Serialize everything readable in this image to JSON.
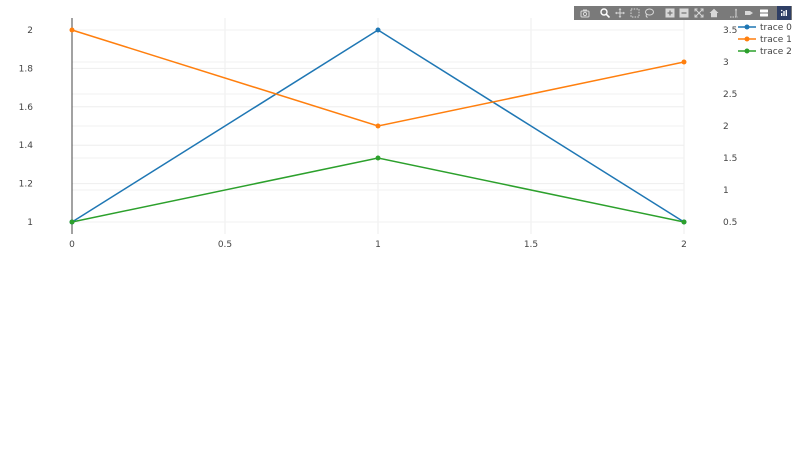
{
  "chart_data": {
    "type": "line",
    "x": [
      0,
      1,
      2
    ],
    "series": [
      {
        "name": "trace 0",
        "axis": "y",
        "values": [
          1,
          2,
          1
        ],
        "color": "#1f77b4"
      },
      {
        "name": "trace 1",
        "axis": "y2",
        "values": [
          3.5,
          2,
          3
        ],
        "color": "#ff7f0e"
      },
      {
        "name": "trace 2",
        "axis": "y2",
        "values": [
          0.5,
          1.5,
          0.5
        ],
        "color": "#2ca02c"
      }
    ],
    "xlim": [
      0,
      2
    ],
    "ylim": [
      1,
      2
    ],
    "y2lim": [
      0.5,
      3.5
    ],
    "xticks": [
      0,
      0.5,
      1,
      1.5,
      2
    ],
    "xtick_labels": [
      "0",
      "0.5",
      "1",
      "1.5",
      "2"
    ],
    "yticks": [
      1,
      1.2,
      1.4,
      1.6,
      1.8,
      2
    ],
    "ytick_labels": [
      "1",
      "1.2",
      "1.4",
      "1.6",
      "1.8",
      "2"
    ],
    "y2ticks": [
      0.5,
      1,
      1.5,
      2,
      2.5,
      3,
      3.5
    ],
    "y2tick_labels": [
      "0.5",
      "1",
      "1.5",
      "2",
      "2.5",
      "3",
      "3.5"
    ],
    "grid": true,
    "legend_position": "top-right",
    "title": "",
    "xlabel": "",
    "ylabel": "",
    "y2label": ""
  },
  "modebar": {
    "buttons": [
      {
        "name": "camera-icon",
        "group": 1
      },
      {
        "name": "zoom-icon",
        "group": 2
      },
      {
        "name": "pan-icon",
        "group": 2
      },
      {
        "name": "box-select-icon",
        "group": 2
      },
      {
        "name": "lasso-select-icon",
        "group": 2
      },
      {
        "name": "zoom-in-icon",
        "group": 3
      },
      {
        "name": "zoom-out-icon",
        "group": 3
      },
      {
        "name": "autoscale-icon",
        "group": 3
      },
      {
        "name": "home-icon",
        "group": 3
      },
      {
        "name": "spike-lines-icon",
        "group": 4
      },
      {
        "name": "hover-closest-icon",
        "group": 4
      },
      {
        "name": "hover-compare-icon",
        "group": 4
      },
      {
        "name": "plotly-logo-icon",
        "group": 5
      }
    ],
    "background_color": "#7a7a7a"
  }
}
